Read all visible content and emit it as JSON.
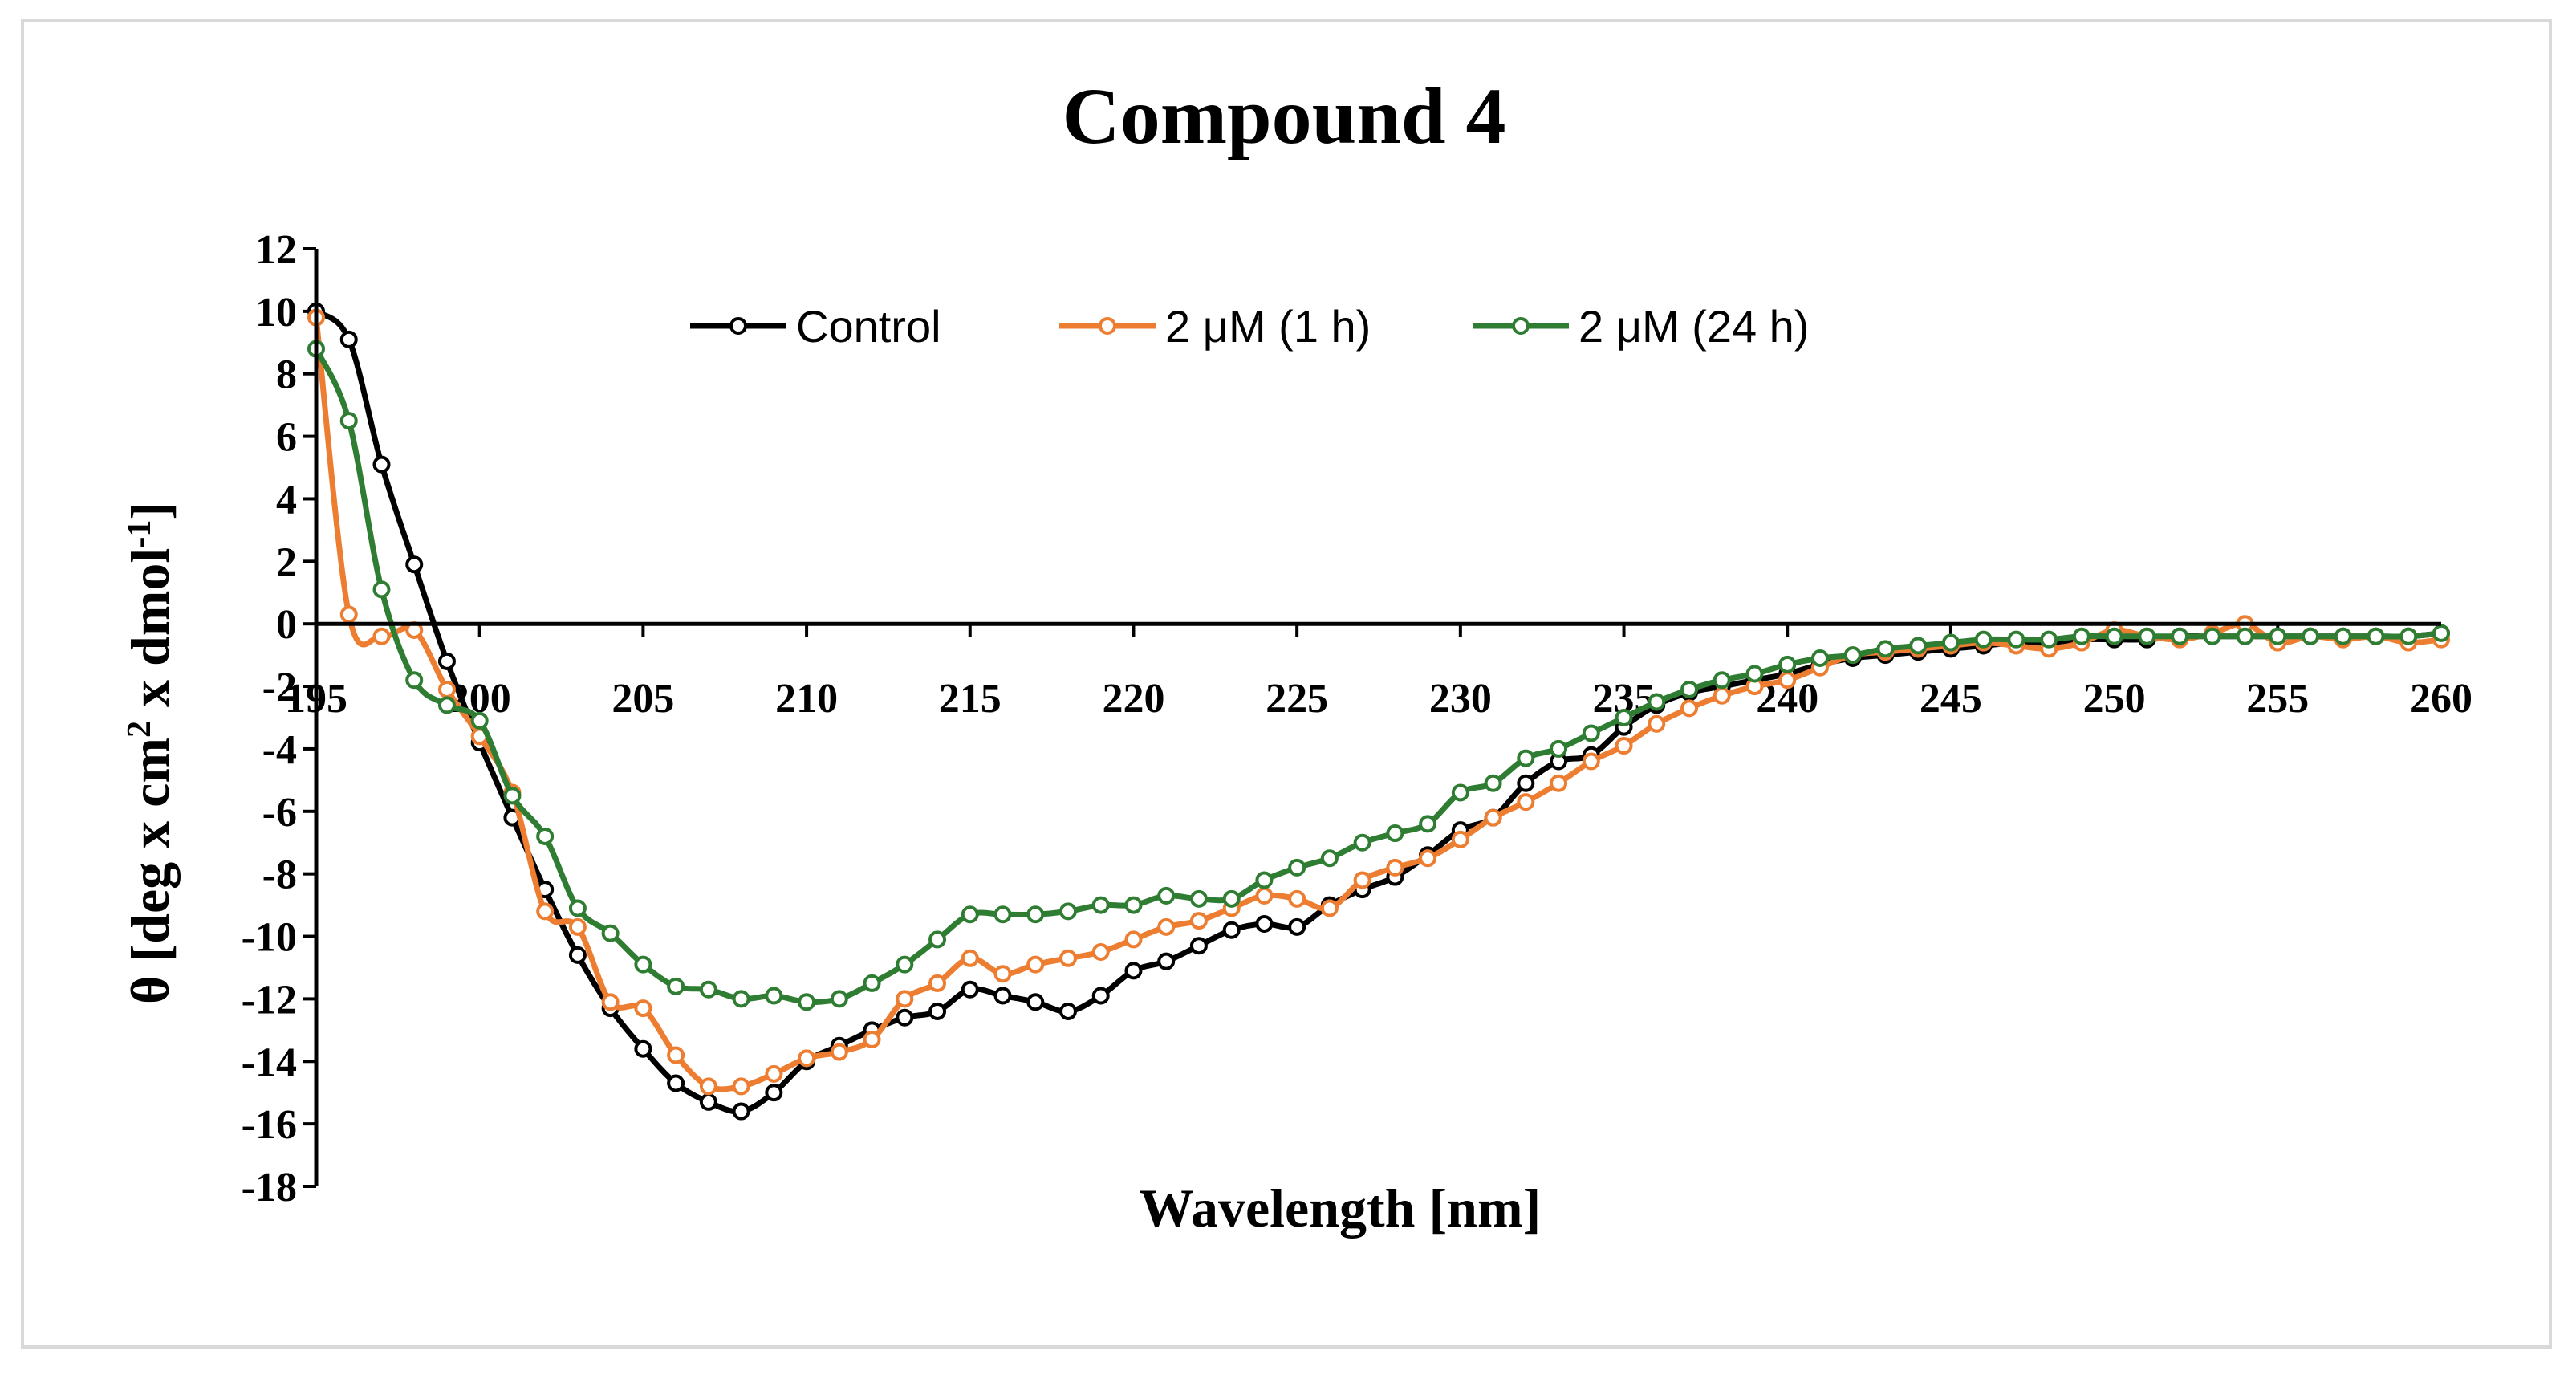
{
  "chart_data": {
    "type": "line",
    "title": "Compound 4",
    "xlabel": "Wavelength [nm]",
    "ylabel": "θ [deg x cm² x dmol⁻¹]",
    "ylabel_parts": {
      "main": "θ [deg x cm",
      "sup1": "2",
      "mid": " x dmol",
      "sup2": "-1",
      "end": "]"
    },
    "xlim": [
      195,
      260
    ],
    "ylim": [
      -18,
      12
    ],
    "xticks": [
      195,
      200,
      205,
      210,
      215,
      220,
      225,
      230,
      235,
      240,
      245,
      250,
      255,
      260
    ],
    "yticks": [
      12,
      10,
      8,
      6,
      4,
      2,
      0,
      -2,
      -4,
      -6,
      -8,
      -10,
      -12,
      -14,
      -16,
      -18
    ],
    "grid": false,
    "legend_position": "top",
    "x": [
      195,
      196,
      197,
      198,
      199,
      200,
      201,
      202,
      203,
      204,
      205,
      206,
      207,
      208,
      209,
      210,
      211,
      212,
      213,
      214,
      215,
      216,
      217,
      218,
      219,
      220,
      221,
      222,
      223,
      224,
      225,
      226,
      227,
      228,
      229,
      230,
      231,
      232,
      233,
      234,
      235,
      236,
      237,
      238,
      239,
      240,
      241,
      242,
      243,
      244,
      245,
      246,
      247,
      248,
      249,
      250,
      251,
      252,
      253,
      254,
      255,
      256,
      257,
      258,
      259,
      260
    ],
    "series": [
      {
        "name": "Control",
        "color": "#000000",
        "values": [
          10.0,
          9.1,
          5.1,
          1.9,
          -1.2,
          -3.8,
          -6.2,
          -8.5,
          -10.6,
          -12.3,
          -13.6,
          -14.7,
          -15.3,
          -15.6,
          -15.0,
          -14.0,
          -13.5,
          -13.0,
          -12.6,
          -12.4,
          -11.7,
          -11.9,
          -12.1,
          -12.4,
          -11.9,
          -11.1,
          -10.8,
          -10.3,
          -9.8,
          -9.6,
          -9.7,
          -9.0,
          -8.5,
          -8.1,
          -7.4,
          -6.6,
          -6.2,
          -5.1,
          -4.4,
          -4.2,
          -3.3,
          -2.6,
          -2.2,
          -2.0,
          -1.8,
          -1.6,
          -1.3,
          -1.1,
          -1.0,
          -0.9,
          -0.8,
          -0.7,
          -0.6,
          -0.6,
          -0.5,
          -0.5,
          -0.5,
          -0.4,
          -0.4,
          -0.4,
          -0.4,
          -0.4,
          -0.4,
          -0.4,
          -0.4,
          -0.3
        ]
      },
      {
        "name": "2 μM (1 h)",
        "color": "#ed7d31",
        "values": [
          9.8,
          0.3,
          -0.4,
          -0.2,
          -2.1,
          -3.6,
          -5.4,
          -9.2,
          -9.7,
          -12.1,
          -12.3,
          -13.8,
          -14.8,
          -14.8,
          -14.4,
          -13.9,
          -13.7,
          -13.3,
          -12.0,
          -11.5,
          -10.7,
          -11.2,
          -10.9,
          -10.7,
          -10.5,
          -10.1,
          -9.7,
          -9.5,
          -9.1,
          -8.7,
          -8.8,
          -9.1,
          -8.2,
          -7.8,
          -7.5,
          -6.9,
          -6.2,
          -5.7,
          -5.1,
          -4.4,
          -3.9,
          -3.2,
          -2.7,
          -2.3,
          -2.0,
          -1.8,
          -1.4,
          -1.0,
          -0.9,
          -0.8,
          -0.7,
          -0.6,
          -0.7,
          -0.8,
          -0.6,
          -0.2,
          -0.4,
          -0.5,
          -0.3,
          0.0,
          -0.6,
          -0.4,
          -0.5,
          -0.4,
          -0.6,
          -0.5
        ]
      },
      {
        "name": "2 μM (24 h)",
        "color": "#2e7d32",
        "values": [
          8.8,
          6.5,
          1.1,
          -1.8,
          -2.6,
          -3.1,
          -5.5,
          -6.8,
          -9.1,
          -9.9,
          -10.9,
          -11.6,
          -11.7,
          -12.0,
          -11.9,
          -12.1,
          -12.0,
          -11.5,
          -10.9,
          -10.1,
          -9.3,
          -9.3,
          -9.3,
          -9.2,
          -9.0,
          -9.0,
          -8.7,
          -8.8,
          -8.8,
          -8.2,
          -7.8,
          -7.5,
          -7.0,
          -6.7,
          -6.4,
          -5.4,
          -5.1,
          -4.3,
          -4.0,
          -3.5,
          -3.0,
          -2.5,
          -2.1,
          -1.8,
          -1.6,
          -1.3,
          -1.1,
          -1.0,
          -0.8,
          -0.7,
          -0.6,
          -0.5,
          -0.5,
          -0.5,
          -0.4,
          -0.4,
          -0.4,
          -0.4,
          -0.4,
          -0.4,
          -0.4,
          -0.4,
          -0.4,
          -0.4,
          -0.4,
          -0.3
        ]
      }
    ]
  }
}
